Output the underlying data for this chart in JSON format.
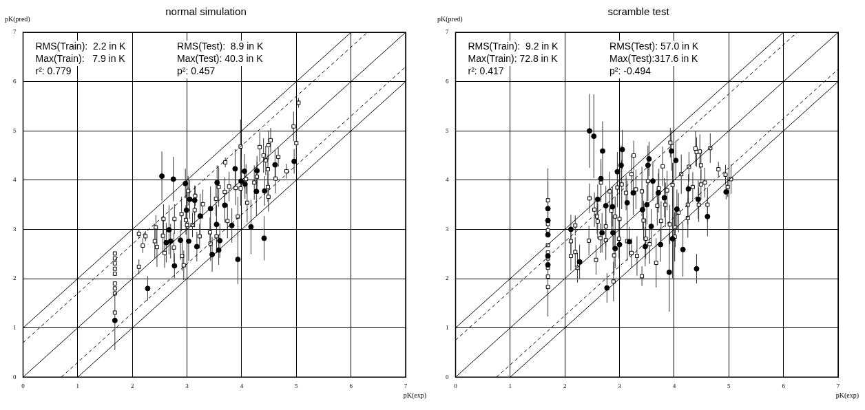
{
  "chart_data": [
    {
      "type": "scatter",
      "title": "normal simulation",
      "xlabel": "pK(exp)",
      "ylabel": "pK(pred)",
      "annotations": [
        "RMS(Train):  2.2 in K",
        "Max(Train):   7.9 in K",
        "r²: 0.779",
        "RMS(Test):  8.9 in K",
        "Max(Test): 40.3 in K",
        "p²: 0.457"
      ],
      "xlim": [
        0,
        7
      ],
      "ylim": [
        0,
        7
      ],
      "xticks": [
        0,
        1,
        2,
        3,
        4,
        5,
        6,
        7
      ],
      "yticks": [
        0,
        1,
        2,
        3,
        4,
        5,
        6,
        7
      ],
      "grid": true,
      "series": [
        {
          "type": "line",
          "color": "#000000",
          "line_style": "solid",
          "marker": "none",
          "x": [
            0,
            7
          ],
          "values": [
            0,
            7
          ]
        },
        {
          "type": "line",
          "color": "#000000",
          "line_style": "solid",
          "marker": "none",
          "x": [
            0,
            6
          ],
          "values": [
            1,
            7
          ]
        },
        {
          "type": "line",
          "color": "#000000",
          "line_style": "solid",
          "marker": "none",
          "x": [
            1,
            7
          ],
          "values": [
            0,
            6
          ]
        },
        {
          "type": "line",
          "color": "#000000",
          "line_style": "dashed",
          "marker": "none",
          "x": [
            0,
            6.3
          ],
          "values": [
            0.7,
            7
          ]
        },
        {
          "type": "line",
          "color": "#000000",
          "line_style": "dashed",
          "marker": "none",
          "x": [
            0.7,
            7
          ],
          "values": [
            0,
            6.3
          ]
        },
        {
          "type": "scatter",
          "color": "#000000",
          "marker": "circle",
          "x": [
            1.68,
            2.28,
            2.54,
            2.75,
            2.97,
            2.77,
            3.05,
            3.14,
            2.99,
            3.24,
            2.62,
            2.7,
            2.88,
            3.03,
            3.18,
            3.43,
            3.46,
            3.58,
            3.6,
            3.54,
            3.55,
            3.82,
            3.88,
            3.93,
            4.05,
            3.99,
            4.06,
            4.17,
            4.27,
            4.28,
            4.41,
            4.42,
            4.61,
            4.96,
            2.67,
            3.69
          ],
          "values": [
            1.15,
            1.8,
            4.08,
            4.02,
            3.93,
            2.26,
            3.61,
            3.59,
            3.39,
            3.27,
            2.73,
            2.76,
            2.78,
            2.76,
            2.65,
            3.42,
            2.49,
            2.58,
            2.77,
            3.1,
            3.95,
            3.08,
            4.23,
            2.39,
            4.18,
            3.98,
            3.92,
            3.05,
            3.77,
            4.19,
            2.82,
            3.78,
            4.31,
            4.38,
            2.99,
            3.49
          ],
          "errors": [
            0.6,
            0.25,
            0.5,
            0.45,
            0.3,
            0.25,
            0.4,
            0.3,
            0.4,
            0.45,
            0.4,
            0.35,
            0.4,
            0.4,
            0.3,
            0.45,
            0.35,
            0.3,
            0.35,
            0.4,
            0.35,
            0.35,
            0.4,
            0.5,
            0.35,
            0.5,
            0.3,
            0.55,
            0.5,
            0.3,
            0.45,
            0.3,
            0.3,
            0.25,
            0.5,
            0.35
          ]
        },
        {
          "type": "scatter",
          "color": "#ffffff",
          "marker": "square",
          "x": [
            1.68,
            1.68,
            1.68,
            1.68,
            1.68,
            1.68,
            1.68,
            1.68,
            1.68,
            2.12,
            2.12,
            2.19,
            2.24,
            2.43,
            2.41,
            2.45,
            2.57,
            2.59,
            2.56,
            2.77,
            2.76,
            2.9,
            2.91,
            2.94,
            2.98,
            3.0,
            3.02,
            3.1,
            3.15,
            3.14,
            3.23,
            3.29,
            3.42,
            3.43,
            3.54,
            3.53,
            3.58,
            3.69,
            3.7,
            3.77,
            3.74,
            3.89,
            3.93,
            3.98,
            3.98,
            4.08,
            4.1,
            4.23,
            4.28,
            4.33,
            4.4,
            4.44,
            4.48,
            4.49,
            4.53,
            4.48,
            4.49,
            4.62,
            4.67,
            4.82,
            4.95,
            5.0,
            5.04
          ],
          "values": [
            2.51,
            2.41,
            2.31,
            2.2,
            2.1,
            1.9,
            1.8,
            1.7,
            1.31,
            2.24,
            2.91,
            2.67,
            2.86,
            3.04,
            2.76,
            2.64,
            3.21,
            2.52,
            2.87,
            3.21,
            2.63,
            3.31,
            2.46,
            2.27,
            3.19,
            3.09,
            3.78,
            3.09,
            3.68,
            3.39,
            2.86,
            3.51,
            2.94,
            2.71,
            2.86,
            3.62,
            3.86,
            3.76,
            4.36,
            3.87,
            3.17,
            3.84,
            3.26,
            4.68,
            3.83,
            4.02,
            3.54,
            3.95,
            4.07,
            4.67,
            4.5,
            4.4,
            4.22,
            4.71,
            4.81,
            3.86,
            3.66,
            4.03,
            4.47,
            4.18,
            5.09,
            4.75,
            5.57
          ],
          "errors": [
            null,
            null,
            null,
            null,
            null,
            null,
            null,
            null,
            null,
            0.15,
            0.1,
            0.15,
            0.1,
            0.25,
            0.35,
            0.4,
            0.3,
            0.3,
            0.35,
            0.3,
            0.3,
            0.35,
            0.3,
            0.3,
            0.3,
            0.35,
            0.3,
            0.25,
            0.2,
            0.35,
            0.25,
            0.3,
            0.3,
            0.35,
            0.35,
            0.35,
            0.4,
            0.3,
            0.1,
            0.3,
            0.35,
            0.35,
            0.4,
            0.55,
            0.35,
            0.3,
            0.4,
            0.35,
            0.3,
            0.3,
            0.35,
            0.3,
            0.3,
            0.3,
            0.25,
            0.3,
            0.3,
            0.3,
            0.2,
            0.15,
            0.3,
            0.3,
            0.1
          ]
        }
      ]
    },
    {
      "type": "scatter",
      "title": "scramble test",
      "xlabel": "pK(exp)",
      "ylabel": "pK(pred)",
      "annotations": [
        "RMS(Train):  9.2 in K",
        "Max(Train): 72.8 in K",
        "r²: 0.417",
        "RMS(Test): 57.0 in K",
        "Max(Test):317.6 in K",
        "p²: -0.494"
      ],
      "xlim": [
        0,
        7
      ],
      "ylim": [
        0,
        7
      ],
      "xticks": [
        0,
        1,
        2,
        3,
        4,
        5,
        6,
        7
      ],
      "yticks": [
        0,
        1,
        2,
        3,
        4,
        5,
        6,
        7
      ],
      "grid": true,
      "series": [
        {
          "type": "line",
          "color": "#000000",
          "line_style": "solid",
          "marker": "none",
          "x": [
            0,
            7
          ],
          "values": [
            0,
            7
          ]
        },
        {
          "type": "line",
          "color": "#000000",
          "line_style": "solid",
          "marker": "none",
          "x": [
            0,
            6
          ],
          "values": [
            1,
            7
          ]
        },
        {
          "type": "line",
          "color": "#000000",
          "line_style": "solid",
          "marker": "none",
          "x": [
            1,
            7
          ],
          "values": [
            0,
            6
          ]
        },
        {
          "type": "line",
          "color": "#000000",
          "line_style": "dashed",
          "marker": "none",
          "x": [
            0,
            6.25
          ],
          "values": [
            0.75,
            7
          ]
        },
        {
          "type": "line",
          "color": "#000000",
          "line_style": "dashed",
          "marker": "none",
          "x": [
            0.75,
            7
          ],
          "values": [
            0,
            6.25
          ]
        },
        {
          "type": "scatter",
          "color": "#000000",
          "marker": "circle",
          "x": [
            1.69,
            1.69,
            1.69,
            1.69,
            1.69,
            2.11,
            2.27,
            2.45,
            2.53,
            2.69,
            2.66,
            2.6,
            2.68,
            2.75,
            2.77,
            2.87,
            2.88,
            2.92,
            2.96,
            3.03,
            3.05,
            3.0,
            3.14,
            3.18,
            3.25,
            3.42,
            3.47,
            3.52,
            3.54,
            3.5,
            3.58,
            3.61,
            3.71,
            3.75,
            3.82,
            3.91,
            3.95,
            3.97,
            4.03,
            4.05,
            4.16,
            4.26,
            4.41,
            4.44,
            4.61,
            4.95
          ],
          "values": [
            3.42,
            3.18,
            2.89,
            2.46,
            2.28,
            3.0,
            2.34,
            5.0,
            4.89,
            4.59,
            4.03,
            3.61,
            2.93,
            3.48,
            1.81,
            3.46,
            2.93,
            2.61,
            4.17,
            4.3,
            4.62,
            2.69,
            3.54,
            2.75,
            3.74,
            3.4,
            2.65,
            4.3,
            4.43,
            3.5,
            3.06,
            3.98,
            3.74,
            2.69,
            3.64,
            2.13,
            4.59,
            2.81,
            4.4,
            3.41,
            2.59,
            3.82,
            2.2,
            3.61,
            3.26,
            3.76
          ],
          "errors": [
            0.55,
            null,
            null,
            null,
            null,
            0.3,
            0.35,
            0.75,
            0.85,
            0.6,
            0.4,
            0.3,
            0.4,
            0.4,
            0.3,
            0.4,
            0.35,
            0.4,
            0.4,
            0.4,
            0.4,
            0.4,
            0.45,
            0.3,
            0.45,
            0.4,
            0.4,
            0.4,
            0.35,
            0.4,
            0.35,
            0.4,
            0.4,
            0.35,
            0.4,
            0.8,
            0.4,
            0.8,
            0.4,
            0.4,
            0.55,
            0.3,
            0.3,
            0.4,
            0.4,
            0.15
          ]
        },
        {
          "type": "scatter",
          "color": "#ffffff",
          "marker": "square",
          "x": [
            1.69,
            1.69,
            1.69,
            1.69,
            1.69,
            1.69,
            1.69,
            1.69,
            1.69,
            2.11,
            2.11,
            2.19,
            2.19,
            2.23,
            2.45,
            2.44,
            2.54,
            2.57,
            2.59,
            2.6,
            2.66,
            2.65,
            2.75,
            2.75,
            2.82,
            2.85,
            2.9,
            2.89,
            2.92,
            2.96,
            2.99,
            3.0,
            3.04,
            3.12,
            3.14,
            3.22,
            3.22,
            3.26,
            3.3,
            3.32,
            3.41,
            3.41,
            3.44,
            3.48,
            3.52,
            3.55,
            3.67,
            3.69,
            3.72,
            3.76,
            3.79,
            3.84,
            3.87,
            3.92,
            3.93,
            3.97,
            4.01,
            4.02,
            4.08,
            4.13,
            4.25,
            4.25,
            4.27,
            4.34,
            4.39,
            4.41,
            4.47,
            4.49,
            4.45,
            4.49,
            4.56,
            4.61,
            4.66,
            4.81,
            4.94,
            4.98,
            5.04
          ],
          "values": [
            3.59,
            3.11,
            2.98,
            2.68,
            2.53,
            2.41,
            2.22,
            2.04,
            1.83,
            2.76,
            2.46,
            3.08,
            2.54,
            2.22,
            3.63,
            2.77,
            3.4,
            2.38,
            3.26,
            3.16,
            3.95,
            2.82,
            3.06,
            2.78,
            3.77,
            3.38,
            2.47,
            1.94,
            3.26,
            3.85,
            2.81,
            3.21,
            3.91,
            3.74,
            2.76,
            4.12,
            2.52,
            4.5,
            3.81,
            2.46,
            2.05,
            3.77,
            3.18,
            2.81,
            3.98,
            2.7,
            2.32,
            3.48,
            3.83,
            3.17,
            4.28,
            3.5,
            3.79,
            3.1,
            4.76,
            3.9,
            2.85,
            3.04,
            3.34,
            4.12,
            3.5,
            3.23,
            4.27,
            3.86,
            4.64,
            4.57,
            4.58,
            4.3,
            3.5,
            3.91,
            3.95,
            3.5,
            4.65,
            4.22,
            4.11,
            3.86,
            4.02
          ],
          "errors": [
            0.65,
            null,
            null,
            null,
            null,
            null,
            null,
            null,
            0.6,
            0.3,
            0.3,
            0.2,
            0.3,
            0.3,
            0.3,
            0.3,
            0.35,
            0.3,
            0.35,
            0.35,
            0.4,
            0.3,
            0.4,
            0.4,
            0.4,
            0.4,
            0.4,
            0.4,
            0.4,
            0.4,
            0.4,
            0.5,
            0.5,
            0.35,
            0.4,
            0.4,
            0.3,
            0.3,
            0.4,
            0.4,
            0.2,
            0.5,
            0.4,
            0.4,
            0.4,
            0.4,
            0.5,
            0.4,
            0.4,
            0.4,
            0.4,
            0.45,
            0.4,
            0.4,
            0.3,
            0.45,
            0.5,
            0.4,
            0.4,
            0.4,
            0.4,
            0.4,
            0.3,
            0.3,
            0.35,
            0.3,
            0.35,
            0.3,
            0.35,
            0.3,
            0.3,
            0.35,
            0.3,
            0.15,
            0.2,
            0.2,
            0.3
          ]
        }
      ]
    }
  ]
}
